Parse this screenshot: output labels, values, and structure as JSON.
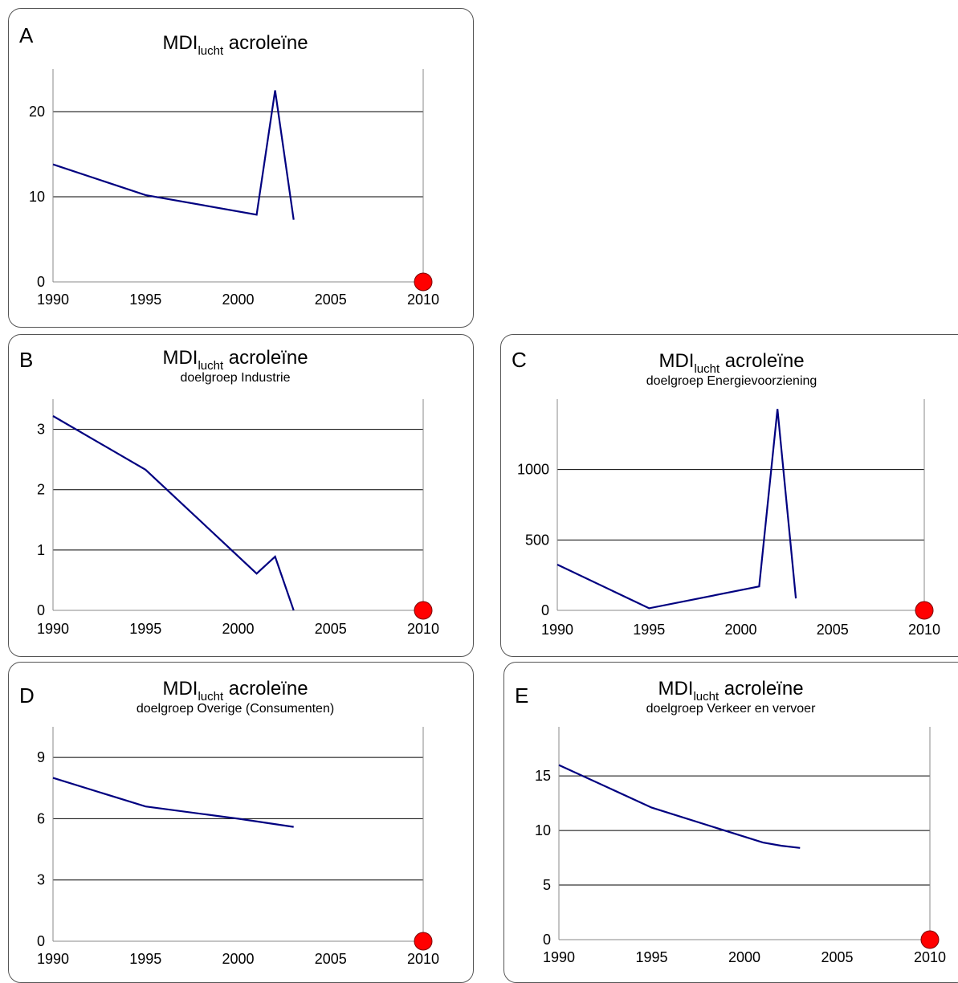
{
  "colors": {
    "series": "#000080",
    "target": "#ff0000"
  },
  "chart_data": [
    {
      "type": "line",
      "panel_label": "A",
      "title_main": "MDI",
      "title_subscript": "lucht",
      "title_rest": " acroleïne",
      "subtitle": "",
      "x": [
        1990,
        1995,
        2001,
        2002,
        2003
      ],
      "series": [
        {
          "values": [
            13.8,
            10.2,
            7.9,
            22.5,
            7.3
          ]
        }
      ],
      "target": {
        "x": 2010,
        "y": 0
      },
      "xlim": [
        1990,
        2010
      ],
      "ylim": [
        0,
        25
      ],
      "xticks": [
        1990,
        1995,
        2000,
        2005,
        2010
      ],
      "yticks": [
        0,
        10,
        20
      ],
      "grid": true
    },
    {
      "type": "line",
      "panel_label": "B",
      "title_main": "MDI",
      "title_subscript": "lucht",
      "title_rest": " acroleïne",
      "subtitle": "doelgroep Industrie",
      "x": [
        1990,
        1995,
        2001,
        2002,
        2003
      ],
      "series": [
        {
          "values": [
            3.22,
            2.33,
            0.61,
            0.89,
            0.0
          ]
        }
      ],
      "target": {
        "x": 2010,
        "y": 0
      },
      "xlim": [
        1990,
        2010
      ],
      "ylim": [
        0,
        3.5
      ],
      "xticks": [
        1990,
        1995,
        2000,
        2005,
        2010
      ],
      "yticks": [
        0,
        1,
        2,
        3
      ],
      "grid": true
    },
    {
      "type": "line",
      "panel_label": "C",
      "title_main": "MDI",
      "title_subscript": "lucht",
      "title_rest": " acroleïne",
      "subtitle": "doelgroep Energievoorziening",
      "x": [
        1990,
        1995,
        2001,
        2002,
        2003
      ],
      "series": [
        {
          "values": [
            325,
            15,
            170,
            1430,
            85
          ]
        }
      ],
      "target": {
        "x": 2010,
        "y": 0
      },
      "xlim": [
        1990,
        2010
      ],
      "ylim": [
        0,
        1500
      ],
      "xticks": [
        1990,
        1995,
        2000,
        2005,
        2010
      ],
      "yticks": [
        0,
        500,
        1000
      ],
      "grid": true
    },
    {
      "type": "line",
      "panel_label": "D",
      "title_main": "MDI",
      "title_subscript": "lucht",
      "title_rest": " acroleïne",
      "subtitle": "doelgroep Overige (Consumenten)",
      "x": [
        1990,
        1995,
        2000,
        2003
      ],
      "series": [
        {
          "values": [
            8.0,
            6.6,
            6.0,
            5.6
          ]
        }
      ],
      "target": {
        "x": 2010,
        "y": 0
      },
      "xlim": [
        1990,
        2010
      ],
      "ylim": [
        0,
        10.5
      ],
      "xticks": [
        1990,
        1995,
        2000,
        2005,
        2010
      ],
      "yticks": [
        0,
        3,
        6,
        9
      ],
      "grid": true
    },
    {
      "type": "line",
      "panel_label": "E",
      "title_main": "MDI",
      "title_subscript": "lucht",
      "title_rest": " acroleïne",
      "subtitle": "doelgroep Verkeer en vervoer",
      "x": [
        1990,
        1995,
        2001,
        2002,
        2003
      ],
      "series": [
        {
          "values": [
            16.0,
            12.1,
            8.9,
            8.6,
            8.4
          ]
        }
      ],
      "target": {
        "x": 2010,
        "y": 0
      },
      "xlim": [
        1990,
        2010
      ],
      "ylim": [
        0,
        19.5
      ],
      "xticks": [
        1990,
        1995,
        2000,
        2005,
        2010
      ],
      "yticks": [
        0,
        5,
        10,
        15
      ],
      "grid": true
    }
  ]
}
